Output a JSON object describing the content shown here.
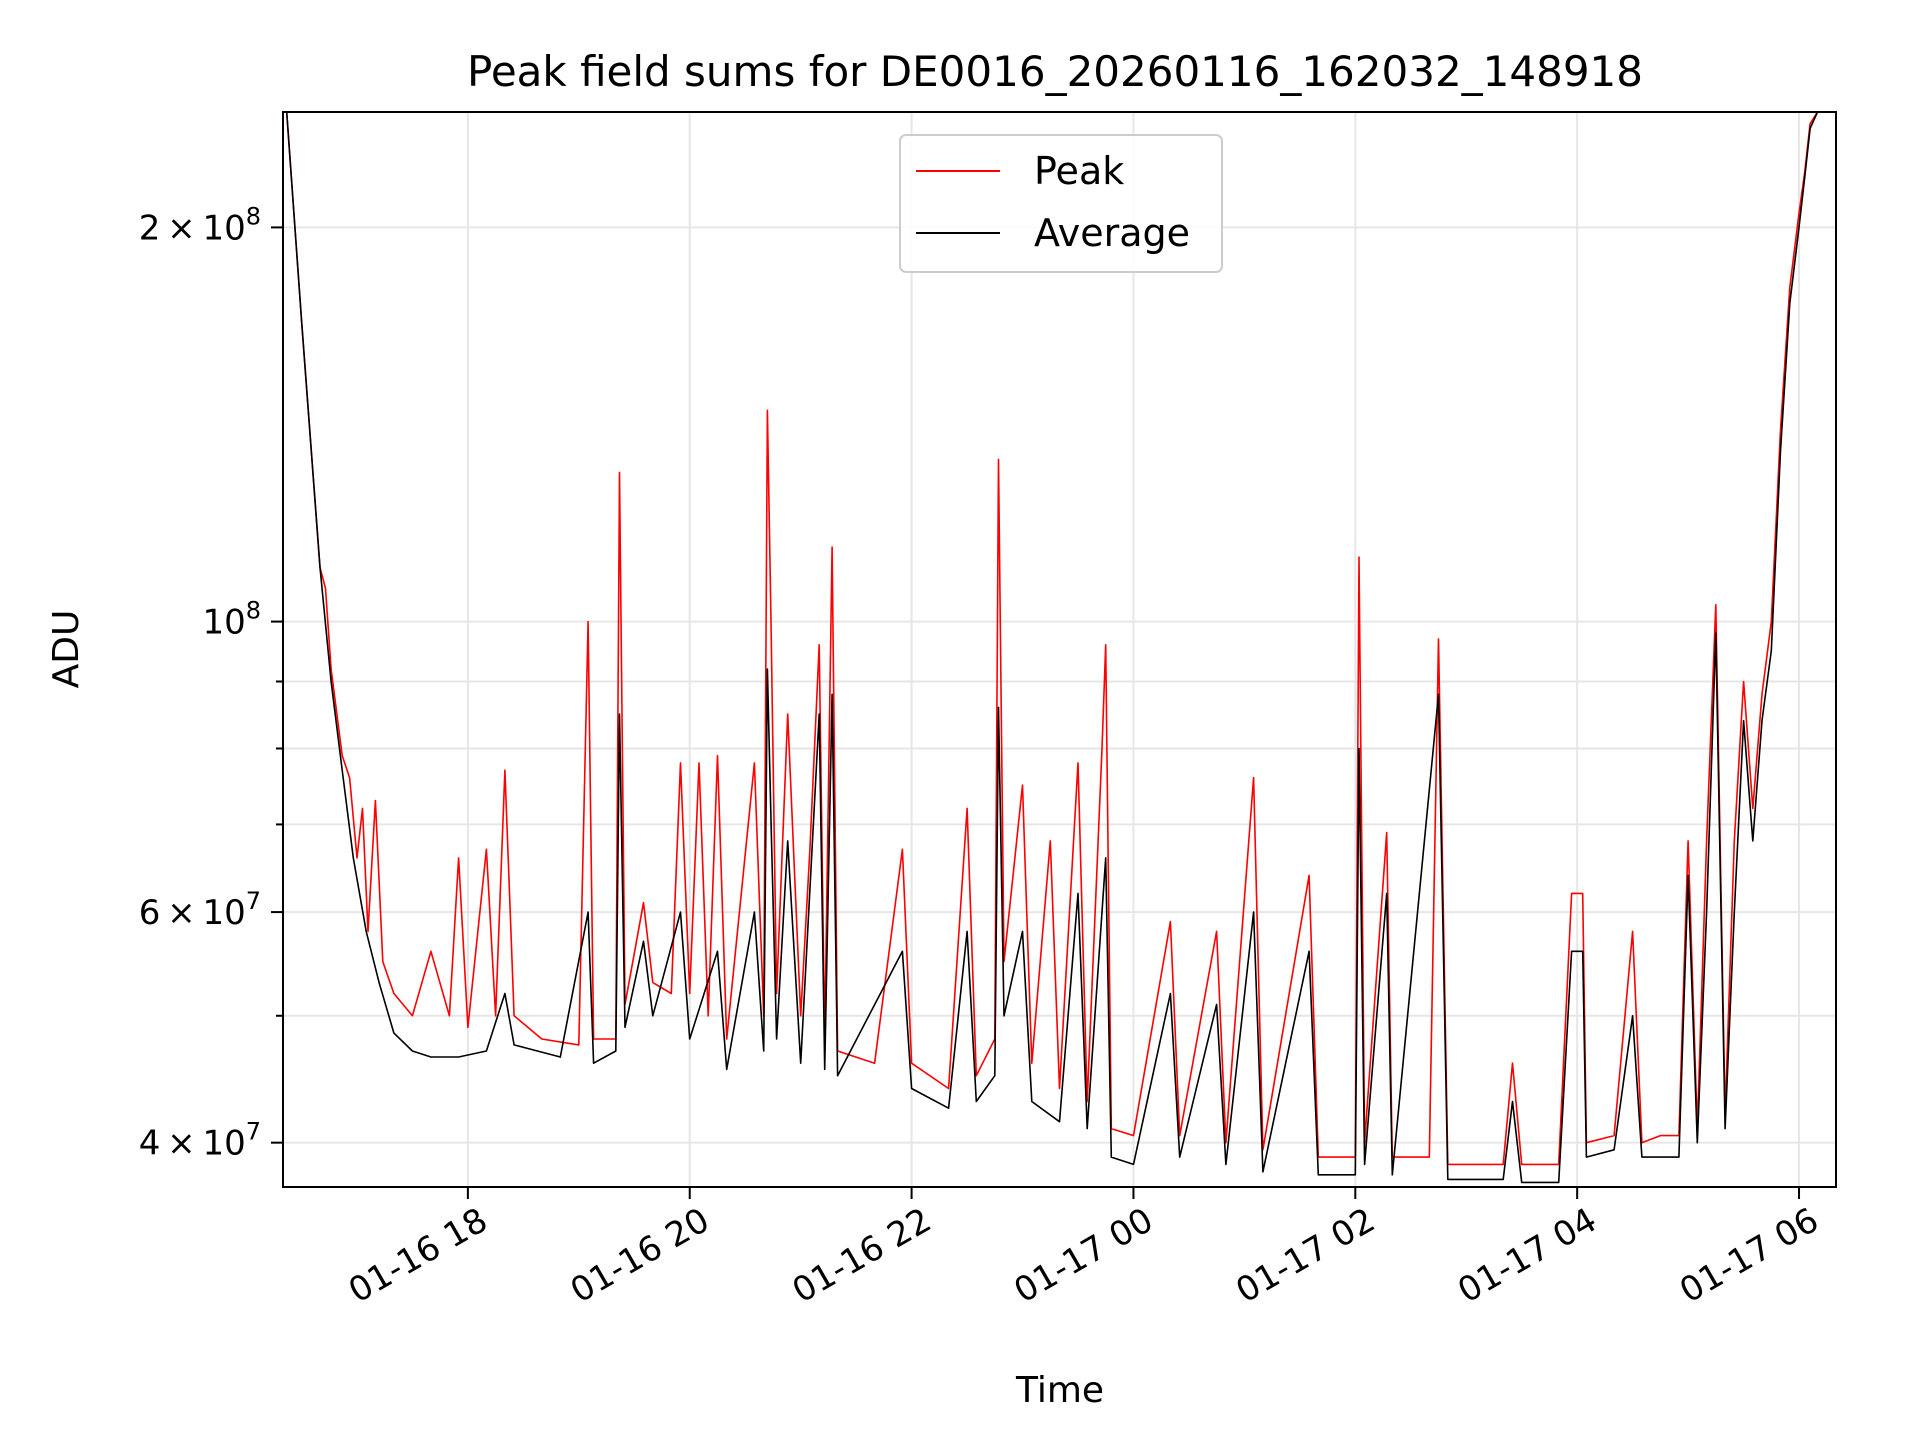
{
  "chart_data": {
    "type": "line",
    "title": "Peak field sums for DE0016_20260116_162032_148918",
    "xlabel": "Time",
    "ylabel": "ADU",
    "yscale": "log",
    "grid": true,
    "legend_position": "top-center",
    "x_range": [
      "2026-01-16 16:20",
      "2026-01-17 06:20"
    ],
    "ylim": [
      37000000,
      245000000
    ],
    "x_ticks": [
      {
        "value": "2026-01-16 18:00",
        "label": "01-16 18"
      },
      {
        "value": "2026-01-16 20:00",
        "label": "01-16 20"
      },
      {
        "value": "2026-01-16 22:00",
        "label": "01-16 22"
      },
      {
        "value": "2026-01-17 00:00",
        "label": "01-17 00"
      },
      {
        "value": "2026-01-17 02:00",
        "label": "01-17 02"
      },
      {
        "value": "2026-01-17 04:00",
        "label": "01-17 04"
      },
      {
        "value": "2026-01-17 06:00",
        "label": "01-17 06"
      }
    ],
    "y_ticks_major": [
      {
        "value": 40000000,
        "base": "4",
        "exp": "7"
      },
      {
        "value": 60000000,
        "base": "6",
        "exp": "7"
      },
      {
        "value": 100000000,
        "base": "",
        "exp": "8"
      },
      {
        "value": 200000000,
        "base": "2",
        "exp": "8"
      }
    ],
    "y_ticks_minor": [
      50000000,
      70000000,
      80000000,
      90000000
    ],
    "series": [
      {
        "name": "Peak",
        "color": "#ff0000",
        "points": [
          [
            "2026-01-16 16:22",
            245000000
          ],
          [
            "2026-01-16 16:30",
            170000000
          ],
          [
            "2026-01-16 16:40",
            110000000
          ],
          [
            "2026-01-16 16:43",
            106000000
          ],
          [
            "2026-01-16 16:46",
            92000000
          ],
          [
            "2026-01-16 16:52",
            79000000
          ],
          [
            "2026-01-16 16:56",
            76000000
          ],
          [
            "2026-01-16 17:00",
            66000000
          ],
          [
            "2026-01-16 17:03",
            72000000
          ],
          [
            "2026-01-16 17:06",
            58000000
          ],
          [
            "2026-01-16 17:10",
            73000000
          ],
          [
            "2026-01-16 17:14",
            55000000
          ],
          [
            "2026-01-16 17:20",
            52000000
          ],
          [
            "2026-01-16 17:30",
            50000000
          ],
          [
            "2026-01-16 17:40",
            56000000
          ],
          [
            "2026-01-16 17:50",
            50000000
          ],
          [
            "2026-01-16 17:55",
            66000000
          ],
          [
            "2026-01-16 18:00",
            49000000
          ],
          [
            "2026-01-16 18:10",
            67000000
          ],
          [
            "2026-01-16 18:15",
            50000000
          ],
          [
            "2026-01-16 18:20",
            77000000
          ],
          [
            "2026-01-16 18:25",
            50000000
          ],
          [
            "2026-01-16 18:40",
            48000000
          ],
          [
            "2026-01-16 19:00",
            47500000
          ],
          [
            "2026-01-16 19:05",
            100000000
          ],
          [
            "2026-01-16 19:08",
            48000000
          ],
          [
            "2026-01-16 19:20",
            48000000
          ],
          [
            "2026-01-16 19:22",
            130000000
          ],
          [
            "2026-01-16 19:25",
            51000000
          ],
          [
            "2026-01-16 19:35",
            61000000
          ],
          [
            "2026-01-16 19:40",
            53000000
          ],
          [
            "2026-01-16 19:50",
            52000000
          ],
          [
            "2026-01-16 19:55",
            78000000
          ],
          [
            "2026-01-16 20:00",
            52000000
          ],
          [
            "2026-01-16 20:05",
            78000000
          ],
          [
            "2026-01-16 20:10",
            50000000
          ],
          [
            "2026-01-16 20:15",
            79000000
          ],
          [
            "2026-01-16 20:20",
            48000000
          ],
          [
            "2026-01-16 20:35",
            78000000
          ],
          [
            "2026-01-16 20:40",
            50000000
          ],
          [
            "2026-01-16 20:42",
            145000000
          ],
          [
            "2026-01-16 20:44",
            99000000
          ],
          [
            "2026-01-16 20:47",
            52000000
          ],
          [
            "2026-01-16 20:53",
            85000000
          ],
          [
            "2026-01-16 21:00",
            50000000
          ],
          [
            "2026-01-16 21:05",
            67000000
          ],
          [
            "2026-01-16 21:10",
            96000000
          ],
          [
            "2026-01-16 21:13",
            48000000
          ],
          [
            "2026-01-16 21:17",
            114000000
          ],
          [
            "2026-01-16 21:20",
            47000000
          ],
          [
            "2026-01-16 21:40",
            46000000
          ],
          [
            "2026-01-16 21:55",
            67000000
          ],
          [
            "2026-01-16 22:00",
            46000000
          ],
          [
            "2026-01-16 22:20",
            44000000
          ],
          [
            "2026-01-16 22:30",
            72000000
          ],
          [
            "2026-01-16 22:35",
            45000000
          ],
          [
            "2026-01-16 22:45",
            48000000
          ],
          [
            "2026-01-16 22:47",
            133000000
          ],
          [
            "2026-01-16 22:50",
            55000000
          ],
          [
            "2026-01-16 23:00",
            75000000
          ],
          [
            "2026-01-16 23:05",
            46000000
          ],
          [
            "2026-01-16 23:15",
            68000000
          ],
          [
            "2026-01-16 23:20",
            44000000
          ],
          [
            "2026-01-16 23:30",
            78000000
          ],
          [
            "2026-01-16 23:35",
            43000000
          ],
          [
            "2026-01-16 23:43",
            80000000
          ],
          [
            "2026-01-16 23:45",
            96000000
          ],
          [
            "2026-01-16 23:48",
            41000000
          ],
          [
            "2026-01-17 00:00",
            40500000
          ],
          [
            "2026-01-17 00:20",
            59000000
          ],
          [
            "2026-01-17 00:25",
            40500000
          ],
          [
            "2026-01-17 00:45",
            58000000
          ],
          [
            "2026-01-17 00:50",
            40000000
          ],
          [
            "2026-01-17 01:05",
            76000000
          ],
          [
            "2026-01-17 01:10",
            39500000
          ],
          [
            "2026-01-17 01:35",
            64000000
          ],
          [
            "2026-01-17 01:40",
            39000000
          ],
          [
            "2026-01-17 02:00",
            39000000
          ],
          [
            "2026-01-17 02:02",
            112000000
          ],
          [
            "2026-01-17 02:05",
            40000000
          ],
          [
            "2026-01-17 02:17",
            69000000
          ],
          [
            "2026-01-17 02:20",
            39000000
          ],
          [
            "2026-01-17 02:40",
            39000000
          ],
          [
            "2026-01-17 02:45",
            97000000
          ],
          [
            "2026-01-17 02:50",
            38500000
          ],
          [
            "2026-01-17 03:20",
            38500000
          ],
          [
            "2026-01-17 03:25",
            46000000
          ],
          [
            "2026-01-17 03:30",
            38500000
          ],
          [
            "2026-01-17 03:50",
            38500000
          ],
          [
            "2026-01-17 03:57",
            62000000
          ],
          [
            "2026-01-17 04:03",
            62000000
          ],
          [
            "2026-01-17 04:05",
            40000000
          ],
          [
            "2026-01-17 04:20",
            40500000
          ],
          [
            "2026-01-17 04:30",
            58000000
          ],
          [
            "2026-01-17 04:35",
            40000000
          ],
          [
            "2026-01-17 04:45",
            40500000
          ],
          [
            "2026-01-17 04:55",
            40500000
          ],
          [
            "2026-01-17 05:00",
            68000000
          ],
          [
            "2026-01-17 05:05",
            41000000
          ],
          [
            "2026-01-17 05:10",
            68000000
          ],
          [
            "2026-01-17 05:15",
            103000000
          ],
          [
            "2026-01-17 05:20",
            42000000
          ],
          [
            "2026-01-17 05:25",
            68000000
          ],
          [
            "2026-01-17 05:30",
            90000000
          ],
          [
            "2026-01-17 05:35",
            72000000
          ],
          [
            "2026-01-17 05:40",
            88000000
          ],
          [
            "2026-01-17 05:45",
            100000000
          ],
          [
            "2026-01-17 05:50",
            140000000
          ],
          [
            "2026-01-17 05:55",
            180000000
          ],
          [
            "2026-01-17 06:00",
            205000000
          ],
          [
            "2026-01-17 06:03",
            220000000
          ],
          [
            "2026-01-17 06:06",
            240000000
          ],
          [
            "2026-01-17 06:10",
            245000000
          ]
        ]
      },
      {
        "name": "Average",
        "color": "#000000",
        "points": [
          [
            "2026-01-16 16:22",
            245000000
          ],
          [
            "2026-01-16 16:30",
            170000000
          ],
          [
            "2026-01-16 16:40",
            110000000
          ],
          [
            "2026-01-16 16:46",
            90000000
          ],
          [
            "2026-01-16 16:52",
            77000000
          ],
          [
            "2026-01-16 16:58",
            66000000
          ],
          [
            "2026-01-16 17:05",
            58000000
          ],
          [
            "2026-01-16 17:12",
            53000000
          ],
          [
            "2026-01-16 17:20",
            48500000
          ],
          [
            "2026-01-16 17:30",
            47000000
          ],
          [
            "2026-01-16 17:40",
            46500000
          ],
          [
            "2026-01-16 17:55",
            46500000
          ],
          [
            "2026-01-16 18:10",
            47000000
          ],
          [
            "2026-01-16 18:20",
            52000000
          ],
          [
            "2026-01-16 18:25",
            47500000
          ],
          [
            "2026-01-16 18:50",
            46500000
          ],
          [
            "2026-01-16 19:05",
            60000000
          ],
          [
            "2026-01-16 19:08",
            46000000
          ],
          [
            "2026-01-16 19:20",
            47000000
          ],
          [
            "2026-01-16 19:22",
            85000000
          ],
          [
            "2026-01-16 19:25",
            49000000
          ],
          [
            "2026-01-16 19:35",
            57000000
          ],
          [
            "2026-01-16 19:40",
            50000000
          ],
          [
            "2026-01-16 19:55",
            60000000
          ],
          [
            "2026-01-16 20:00",
            48000000
          ],
          [
            "2026-01-16 20:15",
            56000000
          ],
          [
            "2026-01-16 20:20",
            45500000
          ],
          [
            "2026-01-16 20:35",
            60000000
          ],
          [
            "2026-01-16 20:40",
            47000000
          ],
          [
            "2026-01-16 20:42",
            92000000
          ],
          [
            "2026-01-16 20:44",
            70000000
          ],
          [
            "2026-01-16 20:47",
            48000000
          ],
          [
            "2026-01-16 20:53",
            68000000
          ],
          [
            "2026-01-16 21:00",
            46000000
          ],
          [
            "2026-01-16 21:10",
            85000000
          ],
          [
            "2026-01-16 21:13",
            45500000
          ],
          [
            "2026-01-16 21:17",
            88000000
          ],
          [
            "2026-01-16 21:20",
            45000000
          ],
          [
            "2026-01-16 21:55",
            56000000
          ],
          [
            "2026-01-16 22:00",
            44000000
          ],
          [
            "2026-01-16 22:20",
            42500000
          ],
          [
            "2026-01-16 22:30",
            58000000
          ],
          [
            "2026-01-16 22:35",
            43000000
          ],
          [
            "2026-01-16 22:45",
            45000000
          ],
          [
            "2026-01-16 22:47",
            86000000
          ],
          [
            "2026-01-16 22:50",
            50000000
          ],
          [
            "2026-01-16 23:00",
            58000000
          ],
          [
            "2026-01-16 23:05",
            43000000
          ],
          [
            "2026-01-16 23:20",
            41500000
          ],
          [
            "2026-01-16 23:30",
            62000000
          ],
          [
            "2026-01-16 23:35",
            41000000
          ],
          [
            "2026-01-16 23:45",
            66000000
          ],
          [
            "2026-01-16 23:48",
            39000000
          ],
          [
            "2026-01-17 00:00",
            38500000
          ],
          [
            "2026-01-17 00:20",
            52000000
          ],
          [
            "2026-01-17 00:25",
            39000000
          ],
          [
            "2026-01-17 00:45",
            51000000
          ],
          [
            "2026-01-17 00:50",
            38500000
          ],
          [
            "2026-01-17 01:05",
            60000000
          ],
          [
            "2026-01-17 01:10",
            38000000
          ],
          [
            "2026-01-17 01:35",
            56000000
          ],
          [
            "2026-01-17 01:40",
            37800000
          ],
          [
            "2026-01-17 02:00",
            37800000
          ],
          [
            "2026-01-17 02:02",
            80000000
          ],
          [
            "2026-01-17 02:05",
            38500000
          ],
          [
            "2026-01-17 02:17",
            62000000
          ],
          [
            "2026-01-17 02:20",
            37800000
          ],
          [
            "2026-01-17 02:45",
            88000000
          ],
          [
            "2026-01-17 02:50",
            37500000
          ],
          [
            "2026-01-17 03:20",
            37500000
          ],
          [
            "2026-01-17 03:25",
            43000000
          ],
          [
            "2026-01-17 03:30",
            37300000
          ],
          [
            "2026-01-17 03:50",
            37300000
          ],
          [
            "2026-01-17 03:57",
            56000000
          ],
          [
            "2026-01-17 04:03",
            56000000
          ],
          [
            "2026-01-17 04:05",
            39000000
          ],
          [
            "2026-01-17 04:20",
            39500000
          ],
          [
            "2026-01-17 04:30",
            50000000
          ],
          [
            "2026-01-17 04:35",
            39000000
          ],
          [
            "2026-01-17 04:55",
            39000000
          ],
          [
            "2026-01-17 05:00",
            64000000
          ],
          [
            "2026-01-17 05:05",
            40000000
          ],
          [
            "2026-01-17 05:10",
            60000000
          ],
          [
            "2026-01-17 05:15",
            98000000
          ],
          [
            "2026-01-17 05:20",
            41000000
          ],
          [
            "2026-01-17 05:25",
            60000000
          ],
          [
            "2026-01-17 05:30",
            84000000
          ],
          [
            "2026-01-17 05:35",
            68000000
          ],
          [
            "2026-01-17 05:40",
            84000000
          ],
          [
            "2026-01-17 05:45",
            95000000
          ],
          [
            "2026-01-17 05:50",
            135000000
          ],
          [
            "2026-01-17 05:55",
            175000000
          ],
          [
            "2026-01-17 06:00",
            200000000
          ],
          [
            "2026-01-17 06:03",
            218000000
          ],
          [
            "2026-01-17 06:06",
            238000000
          ],
          [
            "2026-01-17 06:10",
            245000000
          ]
        ]
      }
    ]
  }
}
